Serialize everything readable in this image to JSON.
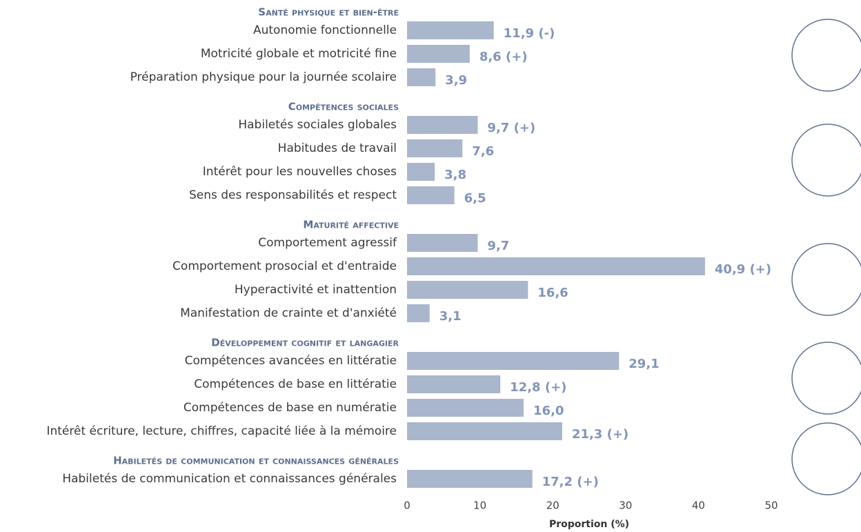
{
  "chart_data": {
    "type": "bar",
    "color": "#a9b6cb",
    "label_color": "#8394b7",
    "header_color": "#5d6f8f",
    "xlabel": "Proportion (%)",
    "xlim": [
      0,
      50
    ],
    "xticks": [
      0,
      10,
      20,
      30,
      40,
      50
    ],
    "groups": [
      {
        "name": "Santé physique et bien-être",
        "categories": [
          "Autonomie fonctionnelle",
          "Motricité globale et motricité fine",
          "Préparation physique pour la journée scolaire"
        ],
        "values": [
          11.9,
          8.6,
          3.9
        ],
        "value_labels": [
          "11,9 (-)",
          "8,6 (+)",
          "3,9"
        ]
      },
      {
        "name": "Compétences sociales",
        "categories": [
          "Habiletés sociales globales",
          "Habitudes de travail",
          "Intérêt pour les nouvelles choses",
          "Sens des responsabilités et respect"
        ],
        "values": [
          9.7,
          7.6,
          3.8,
          6.5
        ],
        "value_labels": [
          "9,7 (+)",
          "7,6",
          "3,8",
          "6,5"
        ]
      },
      {
        "name": "Maturité affective",
        "categories": [
          "Comportement agressif",
          "Comportement prosocial et d'entraide",
          "Hyperactivité et inattention",
          "Manifestation de crainte et d'anxiété"
        ],
        "values": [
          9.7,
          40.9,
          16.6,
          3.1
        ],
        "value_labels": [
          "9,7",
          "40,9 (+)",
          "16,6",
          "3,1"
        ]
      },
      {
        "name": "Développement cognitif et langagier",
        "categories": [
          "Compétences avancées en littératie",
          "Compétences de base en littératie",
          "Compétences de base en numératie",
          "Intérêt écriture, lecture, chiffres, capacité liée à la mémoire"
        ],
        "values": [
          29.1,
          12.8,
          16.0,
          21.3
        ],
        "value_labels": [
          "29,1",
          "12,8 (+)",
          "16,0",
          "21,3 (+)"
        ]
      },
      {
        "name": "Habiletés de communication et connaissances générales",
        "categories": [
          "Habiletés de communication et connaissances générales"
        ],
        "values": [
          17.2
        ],
        "value_labels": [
          "17,2 (+)"
        ]
      }
    ]
  }
}
